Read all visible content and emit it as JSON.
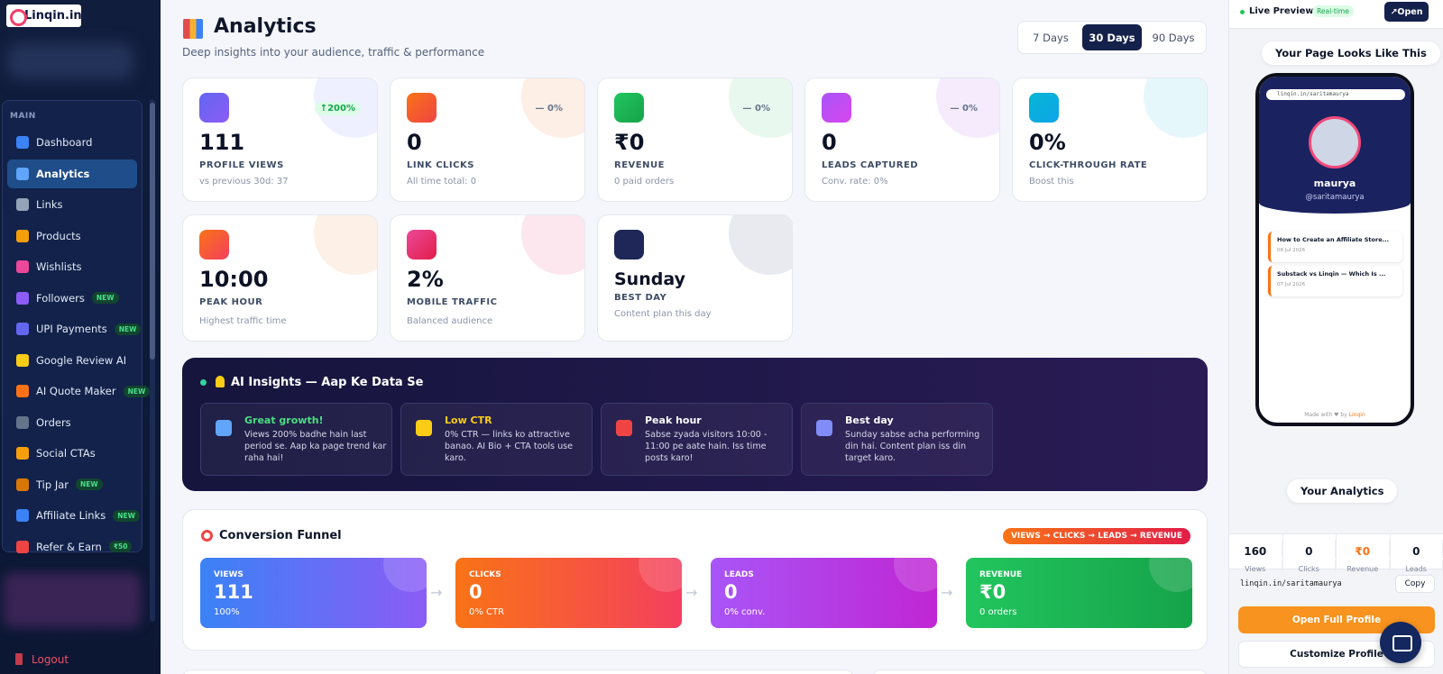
{
  "sidebar": {
    "logo": "Linqin.in",
    "section": "MAIN",
    "items": [
      {
        "label": "Dashboard"
      },
      {
        "label": "Analytics"
      },
      {
        "label": "Links"
      },
      {
        "label": "Products"
      },
      {
        "label": "Wishlists"
      },
      {
        "label": "Followers",
        "badge": "NEW"
      },
      {
        "label": "UPI Payments",
        "badge": "NEW"
      },
      {
        "label": "Google Review AI"
      },
      {
        "label": "AI Quote Maker",
        "badge": "NEW"
      },
      {
        "label": "Orders"
      },
      {
        "label": "Social CTAs"
      },
      {
        "label": "Tip Jar",
        "badge": "NEW"
      },
      {
        "label": "Affiliate Links",
        "badge": "NEW"
      },
      {
        "label": "Refer & Earn",
        "badge": "₹50"
      }
    ],
    "logout": "Logout"
  },
  "header": {
    "title": "Analytics",
    "subtitle": "Deep insights into your audience, traffic & performance",
    "ranges": [
      "7 Days",
      "30 Days",
      "90 Days"
    ]
  },
  "stats": [
    {
      "value": "111",
      "label": "PROFILE VIEWS",
      "note": "vs previous 30d: 37",
      "change": "↑200%"
    },
    {
      "value": "0",
      "label": "LINK CLICKS",
      "note": "All time total: 0",
      "change": "— 0%"
    },
    {
      "value": "₹0",
      "label": "REVENUE",
      "note": "0 paid orders",
      "change": "— 0%"
    },
    {
      "value": "0",
      "label": "LEADS CAPTURED",
      "note": "Conv. rate: 0%",
      "change": "— 0%"
    },
    {
      "value": "0%",
      "label": "CLICK-THROUGH RATE",
      "note": "Boost this"
    },
    {
      "value": "10:00",
      "label": "PEAK HOUR",
      "note": "Highest traffic time"
    },
    {
      "value": "2%",
      "label": "MOBILE TRAFFIC",
      "note": "Balanced audience"
    },
    {
      "value": "Sunday",
      "label": "BEST DAY",
      "note": "Content plan this day"
    }
  ],
  "insights": {
    "title": "AI Insights — Aap Ke Data Se",
    "cards": [
      {
        "title": "Great growth!",
        "text": "Views 200% badhe hain last period se. Aap ka page trend kar raha hai!"
      },
      {
        "title": "Low CTR",
        "text": "0% CTR — links ko attractive banao. AI Bio + CTA tools use karo."
      },
      {
        "title": "Peak hour",
        "text": "Sabse zyada visitors 10:00 - 11:00 pe aate hain. Iss time posts karo!"
      },
      {
        "title": "Best day",
        "text": "Sunday sabse acha performing din hai. Content plan iss din target karo."
      }
    ]
  },
  "funnel": {
    "title": "Conversion Funnel",
    "badge": "VIEWS → CLICKS → LEADS → REVENUE",
    "steps": [
      {
        "label": "VIEWS",
        "value": "111",
        "note": "100%"
      },
      {
        "label": "CLICKS",
        "value": "0",
        "note": "0% CTR"
      },
      {
        "label": "LEADS",
        "value": "0",
        "note": "0% conv."
      },
      {
        "label": "REVENUE",
        "value": "₹0",
        "note": "0 orders"
      }
    ]
  },
  "preview": {
    "title": "Live Preview",
    "badge": "Real-time",
    "open": "↗Open",
    "heading": "Your Page Looks Like This",
    "phone": {
      "url": "linqin.in/saritamaurya",
      "name": "maurya",
      "handle": "@saritamaurya",
      "posts": [
        {
          "title": "How to Create an Affiliate Store...",
          "date": "08 Jul 2026"
        },
        {
          "title": "Substack vs Linqin — Which Is ...",
          "date": "07 Jul 2026"
        }
      ],
      "footer": "Made with ♥ by",
      "brand": "Linqin"
    },
    "analytics_title": "Your Analytics",
    "analytics": [
      {
        "value": "160",
        "label": "Views"
      },
      {
        "value": "0",
        "label": "Clicks"
      },
      {
        "value": "₹0",
        "label": "Revenue"
      },
      {
        "value": "0",
        "label": "Leads"
      }
    ],
    "link": "linqin.in/saritamaurya",
    "copy": "Copy",
    "open_full": "Open Full Profile",
    "customize": "Customize Profile"
  }
}
